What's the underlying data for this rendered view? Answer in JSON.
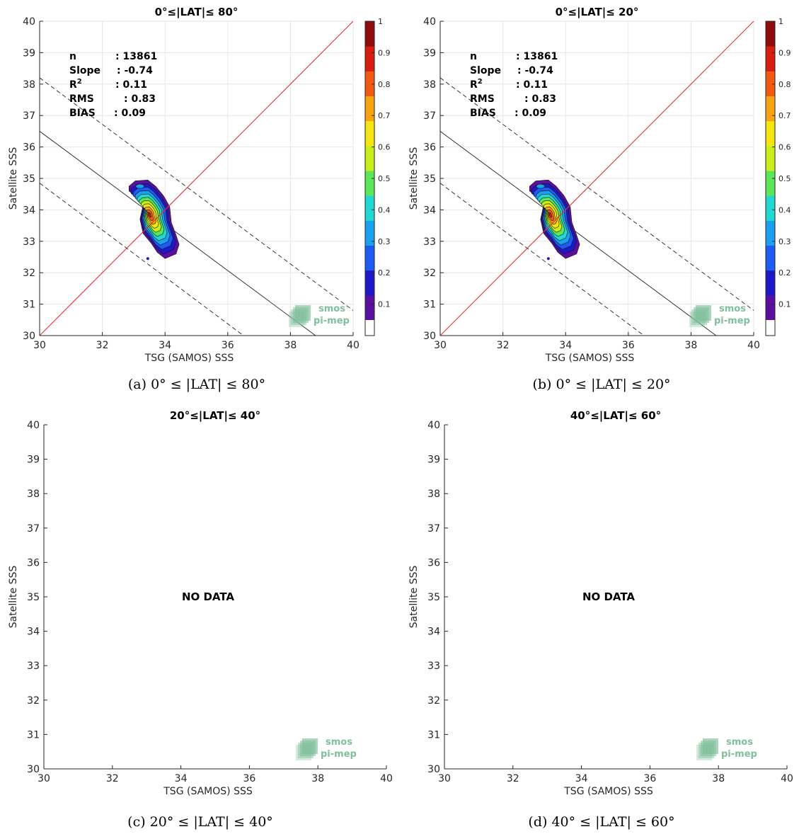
{
  "chart_data": [
    {
      "type": "contour",
      "title": "0°≤|LAT|≤ 80°",
      "caption": "(a) 0° ≤ |LAT| ≤ 80°",
      "xlabel": "TSG (SAMOS) SSS",
      "ylabel": "Satellite SSS",
      "xlim": [
        30,
        40
      ],
      "ylim": [
        30,
        40
      ],
      "xticks": [
        "30",
        "32",
        "34",
        "36",
        "38",
        "40"
      ],
      "yticks": [
        "30",
        "31",
        "32",
        "33",
        "34",
        "35",
        "36",
        "37",
        "38",
        "39",
        "40"
      ],
      "grid": true,
      "has_data": true,
      "stats": [
        {
          "label": "n",
          "value": ": 13861"
        },
        {
          "label": "Slope",
          "value": ": -0.74"
        },
        {
          "label": "R",
          "sup": "2",
          "value": ": 0.11"
        },
        {
          "label": "RMS",
          "value": ": 0.83"
        },
        {
          "label": "BIAS",
          "value": ": 0.09"
        }
      ],
      "identity_line": [
        [
          30,
          30
        ],
        [
          40,
          40
        ]
      ],
      "fit_line": [
        [
          30,
          36.5
        ],
        [
          38.8,
          30
        ]
      ],
      "fit_band_upper": [
        [
          30,
          38.2
        ],
        [
          40,
          30.8
        ]
      ],
      "fit_band_lower": [
        [
          30,
          34.85
        ],
        [
          36.5,
          30
        ]
      ],
      "density_center": [
        33.5,
        33.85
      ],
      "outlier_point": [
        33.45,
        32.45
      ],
      "colorbar": {
        "ticks": [
          "0.1",
          "0.2",
          "0.3",
          "0.4",
          "0.5",
          "0.6",
          "0.7",
          "0.8",
          "0.9",
          "1"
        ],
        "range": [
          0,
          1
        ]
      }
    },
    {
      "type": "contour",
      "title": "0°≤|LAT|≤ 20°",
      "caption": "(b) 0° ≤ |LAT| ≤ 20°",
      "xlabel": "TSG (SAMOS) SSS",
      "ylabel": "Satellite SSS",
      "xlim": [
        30,
        40
      ],
      "ylim": [
        30,
        40
      ],
      "xticks": [
        "30",
        "32",
        "34",
        "36",
        "38",
        "40"
      ],
      "yticks": [
        "30",
        "31",
        "32",
        "33",
        "34",
        "35",
        "36",
        "37",
        "38",
        "39",
        "40"
      ],
      "grid": true,
      "has_data": true,
      "stats": [
        {
          "label": "n",
          "value": ": 13861"
        },
        {
          "label": "Slope",
          "value": ": -0.74"
        },
        {
          "label": "R",
          "sup": "2",
          "value": ": 0.11"
        },
        {
          "label": "RMS",
          "value": ": 0.83"
        },
        {
          "label": "BIAS",
          "value": ": 0.09"
        }
      ],
      "identity_line": [
        [
          30,
          30
        ],
        [
          40,
          40
        ]
      ],
      "fit_line": [
        [
          30,
          36.5
        ],
        [
          38.8,
          30
        ]
      ],
      "fit_band_upper": [
        [
          30,
          38.2
        ],
        [
          40,
          30.8
        ]
      ],
      "fit_band_lower": [
        [
          30,
          34.85
        ],
        [
          36.5,
          30
        ]
      ],
      "density_center": [
        33.5,
        33.85
      ],
      "outlier_point": [
        33.45,
        32.45
      ],
      "colorbar": {
        "ticks": [
          "0.1",
          "0.2",
          "0.3",
          "0.4",
          "0.5",
          "0.6",
          "0.7",
          "0.8",
          "0.9",
          "1"
        ],
        "range": [
          0,
          1
        ]
      }
    },
    {
      "type": "contour",
      "title": "20°≤|LAT|≤ 40°",
      "caption": "(c) 20° ≤ |LAT| ≤ 40°",
      "xlabel": "TSG (SAMOS) SSS",
      "ylabel": "Satellite SSS",
      "xlim": [
        30,
        40
      ],
      "ylim": [
        30,
        40
      ],
      "xticks": [
        "30",
        "32",
        "34",
        "36",
        "38",
        "40"
      ],
      "yticks": [
        "30",
        "31",
        "32",
        "33",
        "34",
        "35",
        "36",
        "37",
        "38",
        "39",
        "40"
      ],
      "grid": false,
      "has_data": false,
      "nodata_text": "NO DATA"
    },
    {
      "type": "contour",
      "title": "40°≤|LAT|≤ 60°",
      "caption": "(d) 40° ≤ |LAT| ≤ 60°",
      "xlabel": "TSG (SAMOS) SSS",
      "ylabel": "Satellite SSS",
      "xlim": [
        30,
        40
      ],
      "ylim": [
        30,
        40
      ],
      "xticks": [
        "30",
        "32",
        "34",
        "36",
        "38",
        "40"
      ],
      "yticks": [
        "30",
        "31",
        "32",
        "33",
        "34",
        "35",
        "36",
        "37",
        "38",
        "39",
        "40"
      ],
      "grid": false,
      "has_data": false,
      "nodata_text": "NO DATA"
    }
  ],
  "logo": {
    "line1": "smos",
    "line2": "pi-mep"
  },
  "colors": {
    "identity": "#e8302a",
    "fit": "#222222",
    "grid": "#e6e6e6",
    "logo": "#7fbf9a",
    "cmap": [
      "#5b0f9e",
      "#1f18c8",
      "#1e5bf0",
      "#1aa0f0",
      "#22d8d2",
      "#5ce65a",
      "#c8ef1a",
      "#f5e511",
      "#f8a412",
      "#f25a12",
      "#d81c10",
      "#8f0c0c"
    ]
  }
}
